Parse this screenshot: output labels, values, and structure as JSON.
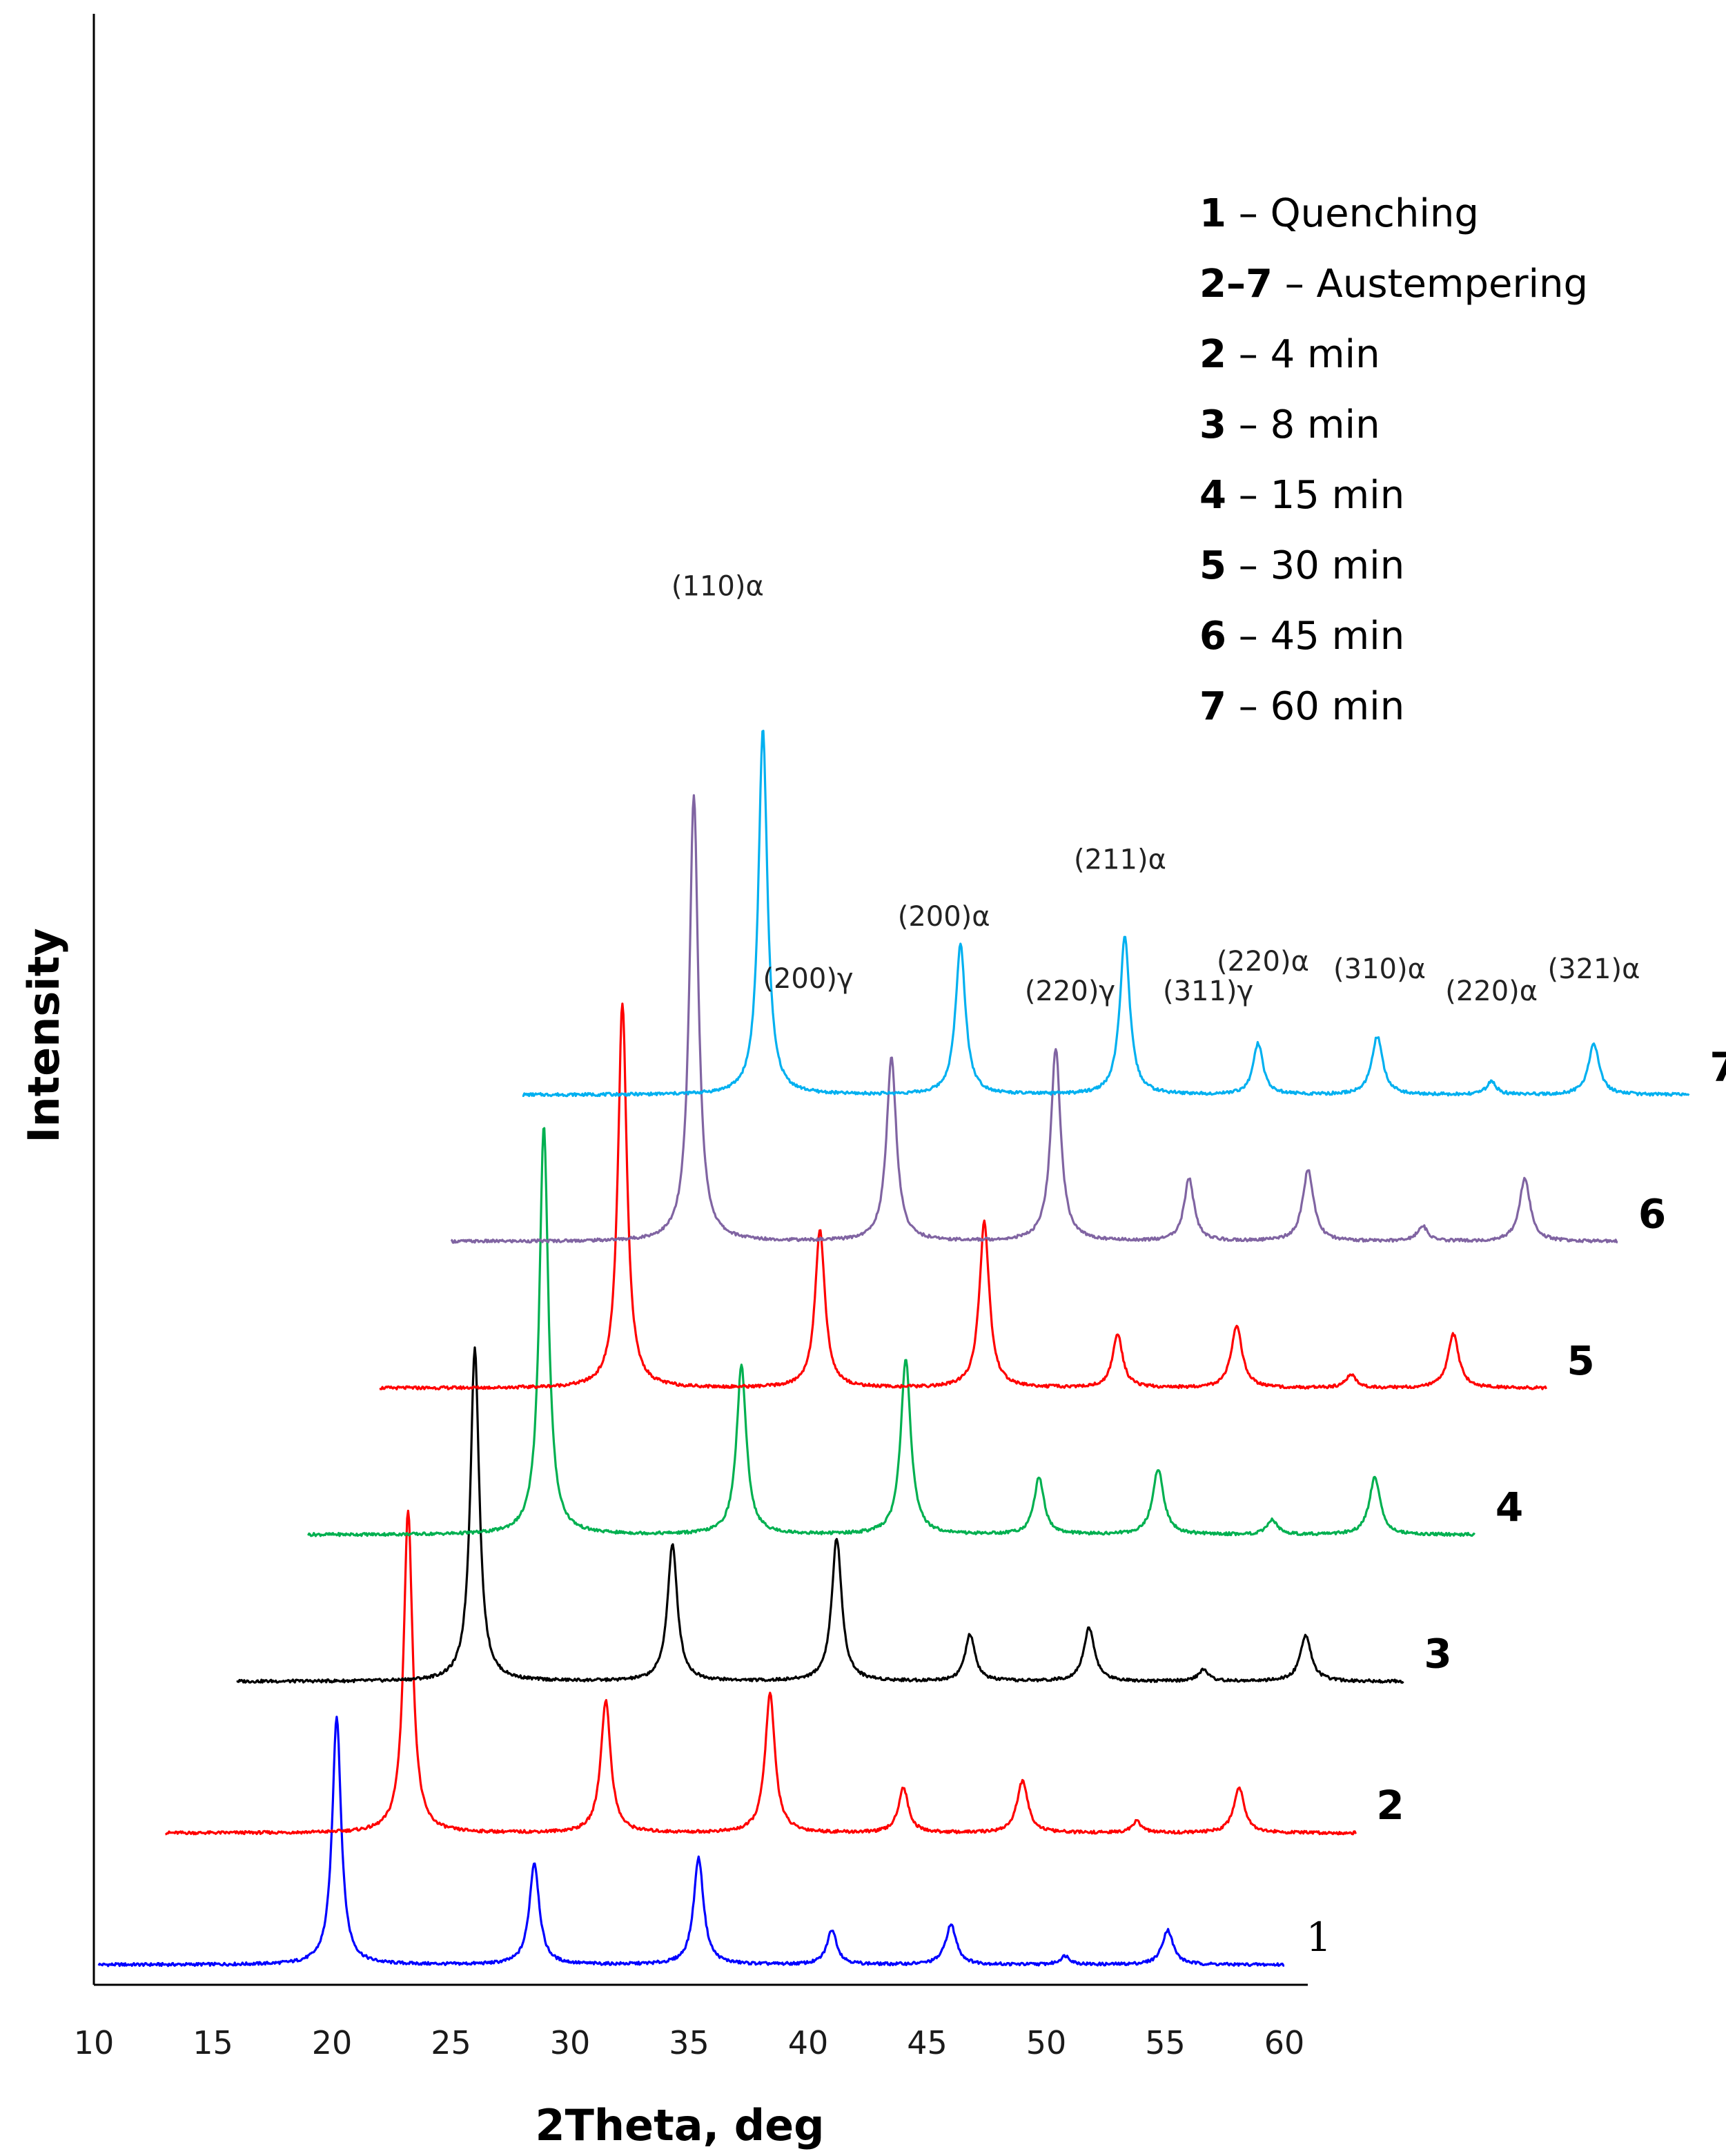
{
  "chart_data": {
    "type": "line",
    "title": "",
    "xlabel": "2Theta, deg",
    "ylabel": "Intensity",
    "xlim": [
      10,
      62
    ],
    "xticks": [
      10,
      15,
      20,
      25,
      30,
      35,
      40,
      45,
      50,
      55,
      60
    ],
    "yticks": [],
    "grid": false,
    "legend_placement": "top-right",
    "legend": [
      {
        "num": "1",
        "text": " – Quenching"
      },
      {
        "num": "2–7",
        "text": " – Austempering"
      },
      {
        "num": "2",
        "text": " – 4 min"
      },
      {
        "num": "3",
        "text": " – 8 min"
      },
      {
        "num": "4",
        "text": " – 15 min"
      },
      {
        "num": "5",
        "text": " – 30 min"
      },
      {
        "num": "6",
        "text": " – 45 min"
      },
      {
        "num": "7",
        "text": " – 60 min"
      }
    ],
    "peak_template": {
      "positions": [
        20.2,
        28.5,
        35.4,
        41.0,
        46.0,
        50.8,
        55.1
      ],
      "heights": [
        1.0,
        0.41,
        0.43,
        0.14,
        0.16,
        0.035,
        0.14
      ],
      "widths": [
        0.45,
        0.5,
        0.5,
        0.5,
        0.55,
        0.5,
        0.55
      ]
    },
    "series": [
      {
        "name": "1",
        "label": "1",
        "color": "#0000ff",
        "x_start": 10.2,
        "x_end": 60.0,
        "shift": 0.0,
        "baseline": 0.0,
        "scale": 1.0
      },
      {
        "name": "2",
        "label": "2",
        "color": "#ff0000",
        "x_start": 13.0,
        "x_end": 63.0,
        "shift": 3.0,
        "baseline": 0.53,
        "scale": 1.3
      },
      {
        "name": "3",
        "label": "3",
        "color": "#000000",
        "x_start": 16.0,
        "x_end": 65.0,
        "shift": 5.8,
        "baseline": 1.14,
        "scale": 1.34
      },
      {
        "name": "4",
        "label": "4",
        "color": "#00b050",
        "x_start": 19.0,
        "x_end": 68.0,
        "shift": 8.7,
        "baseline": 1.73,
        "scale": 1.65
      },
      {
        "name": "5",
        "label": "5",
        "color": "#ff0000",
        "x_start": 22.0,
        "x_end": 71.0,
        "shift": 12.0,
        "baseline": 2.32,
        "scale": 1.55
      },
      {
        "name": "6",
        "label": "6",
        "color": "#8064a2",
        "x_start": 25.0,
        "x_end": 74.0,
        "shift": 15.0,
        "baseline": 2.91,
        "scale": 1.8
      },
      {
        "name": "7",
        "label": "7",
        "color": "#00b0f0",
        "x_start": 28.0,
        "x_end": 77.0,
        "shift": 17.9,
        "baseline": 3.5,
        "scale": 1.47
      }
    ],
    "annotations": [
      {
        "label": "(110)α",
        "x": 36.2,
        "y": 5.51
      },
      {
        "label": "(200)γ",
        "x": 40.0,
        "y": 3.93
      },
      {
        "label": "(200)α",
        "x": 45.7,
        "y": 4.18
      },
      {
        "label": "(220)γ",
        "x": 51.0,
        "y": 3.88
      },
      {
        "label": "(211)α",
        "x": 53.1,
        "y": 4.41
      },
      {
        "label": "(311)γ",
        "x": 56.8,
        "y": 3.88
      },
      {
        "label": "(220)α",
        "x": 59.1,
        "y": 4.0
      },
      {
        "label": "(310)α",
        "x": 64.0,
        "y": 3.97
      },
      {
        "label": "(220)α",
        "x": 68.7,
        "y": 3.88
      },
      {
        "label": "(321)α",
        "x": 73.0,
        "y": 3.97
      }
    ]
  }
}
